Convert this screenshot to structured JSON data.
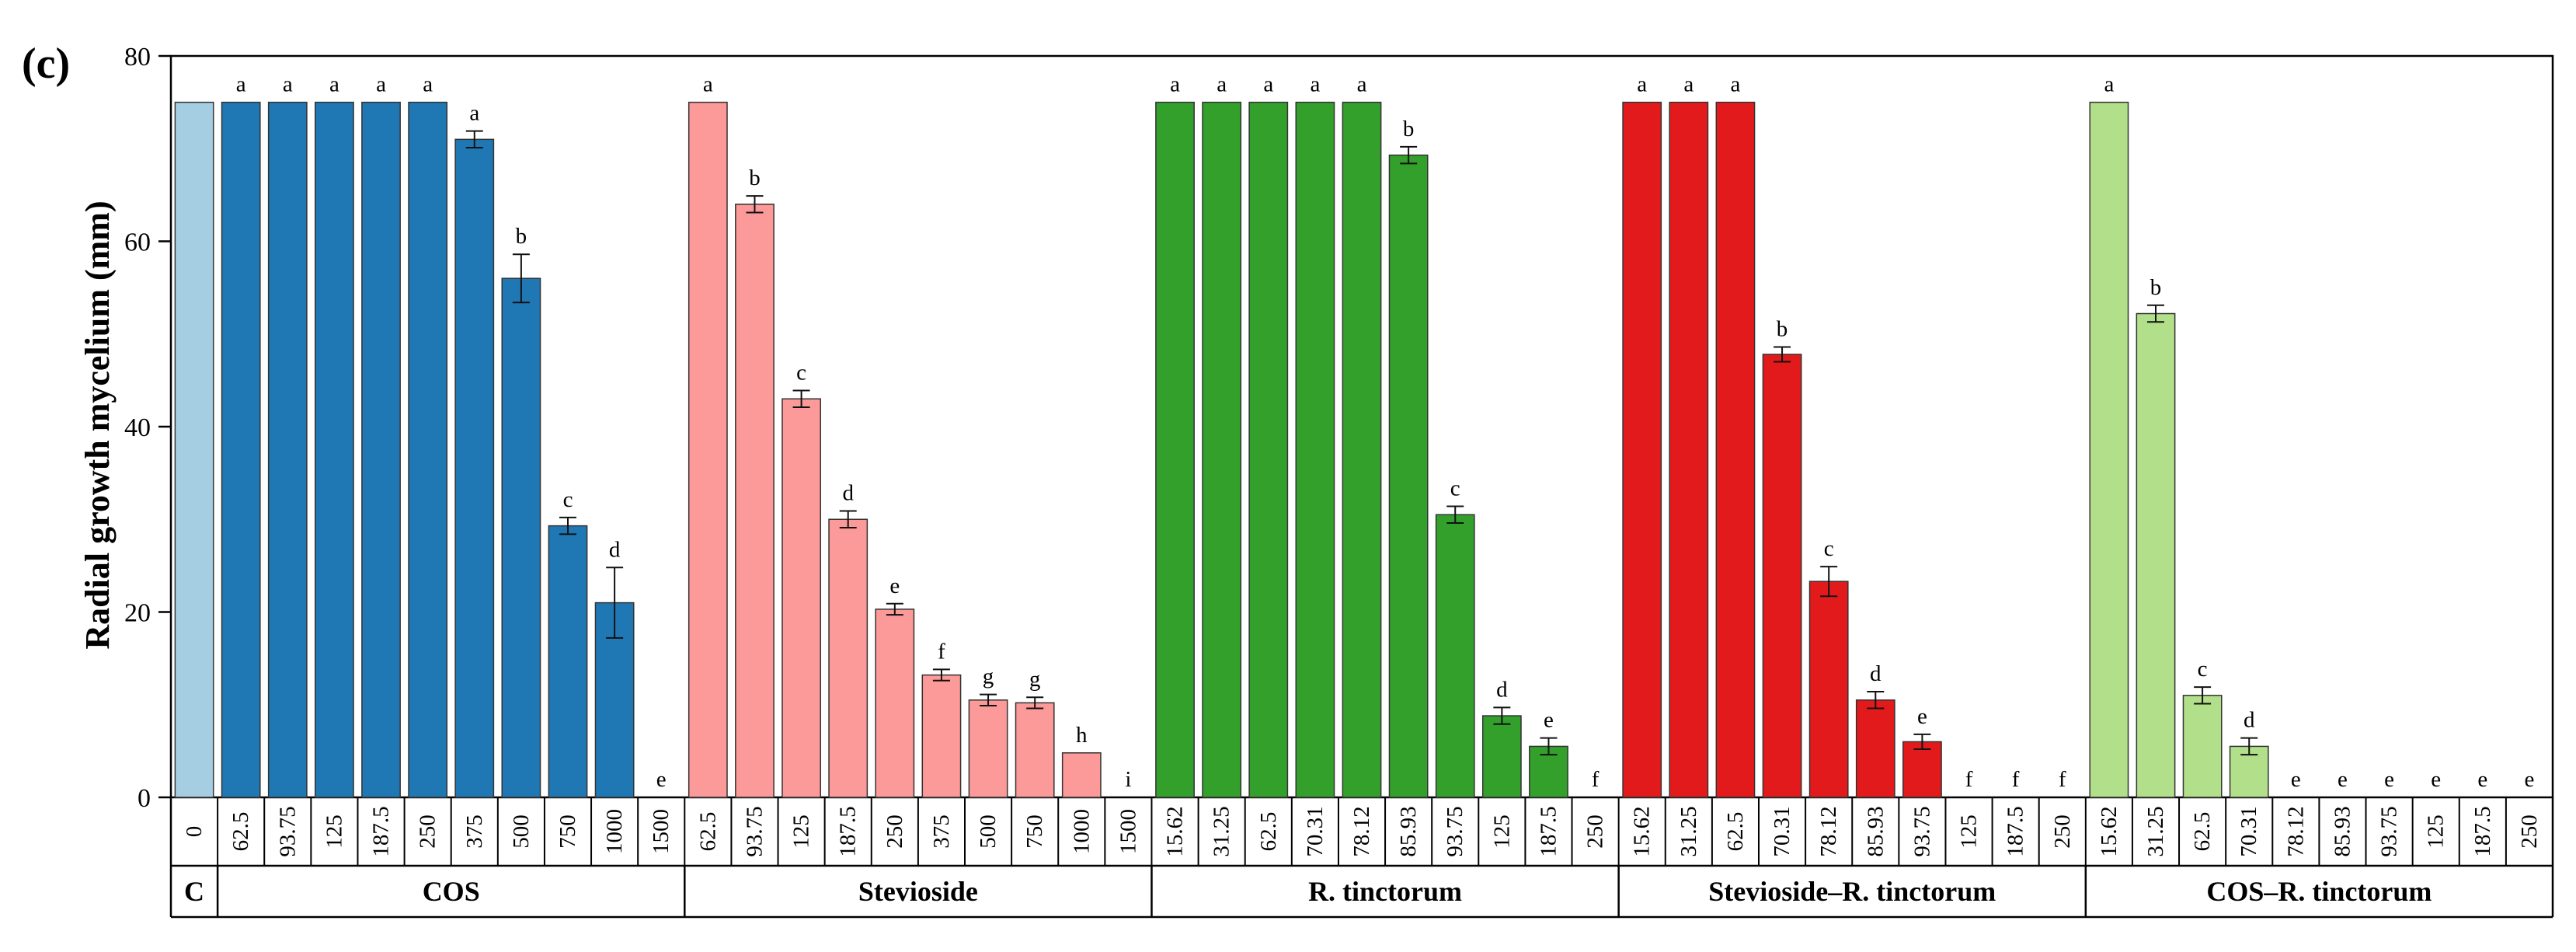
{
  "chart_data": {
    "type": "bar",
    "panel_label": "(c)",
    "ylabel": "Radial growth mycelium (mm)",
    "ylim": [
      0,
      80
    ],
    "yticks": [
      "0",
      "20",
      "40",
      "60",
      "80"
    ],
    "groups": [
      {
        "name": "C",
        "color": "#a6cee3",
        "concentrations": [
          "0"
        ],
        "values": [
          75
        ],
        "errors": [
          0
        ],
        "letters": [
          ""
        ]
      },
      {
        "name": "COS",
        "color": "#1f78b4",
        "concentrations": [
          "62.5",
          "93.75",
          "125",
          "187.5",
          "250",
          "375",
          "500",
          "750",
          "1000",
          "1500"
        ],
        "values": [
          75,
          75,
          75,
          75,
          75,
          71,
          56,
          29.3,
          21,
          0
        ],
        "errors": [
          0,
          0,
          0,
          0,
          0,
          0.9,
          2.6,
          0.9,
          3.8,
          0
        ],
        "letters": [
          "a",
          "a",
          "a",
          "a",
          "a",
          "a",
          "b",
          "c",
          "d",
          "e"
        ]
      },
      {
        "name": "Stevioside",
        "color": "#fb9a99",
        "concentrations": [
          "62.5",
          "93.75",
          "125",
          "187.5",
          "250",
          "375",
          "500",
          "750",
          "1000",
          "1500"
        ],
        "values": [
          75,
          64,
          43,
          30,
          20.3,
          13.2,
          10.5,
          10.2,
          4.8,
          0
        ],
        "errors": [
          0,
          0.9,
          0.9,
          0.9,
          0.6,
          0.6,
          0.6,
          0.6,
          0,
          0
        ],
        "letters": [
          "a",
          "b",
          "c",
          "d",
          "e",
          "f",
          "g",
          "g",
          "h",
          "i"
        ]
      },
      {
        "name": "R. tinctorum",
        "color": "#33a02c",
        "concentrations": [
          "15.62",
          "31.25",
          "62.5",
          "70.31",
          "78.12",
          "85.93",
          "93.75",
          "125",
          "187.5",
          "250"
        ],
        "values": [
          75,
          75,
          75,
          75,
          75,
          69.3,
          30.5,
          8.8,
          5.5,
          0
        ],
        "errors": [
          0,
          0,
          0,
          0,
          0,
          0.9,
          0.9,
          0.9,
          0.9,
          0
        ],
        "letters": [
          "a",
          "a",
          "a",
          "a",
          "a",
          "b",
          "c",
          "d",
          "e",
          "f"
        ]
      },
      {
        "name": "Stevioside–R. tinctorum",
        "color": "#e31a1c",
        "concentrations": [
          "15.62",
          "31.25",
          "62.5",
          "70.31",
          "78.12",
          "85.93",
          "93.75",
          "125",
          "187.5",
          "250"
        ],
        "values": [
          75,
          75,
          75,
          47.8,
          23.3,
          10.5,
          6,
          0,
          0,
          0
        ],
        "errors": [
          0,
          0,
          0,
          0.8,
          1.6,
          0.9,
          0.8,
          0,
          0,
          0
        ],
        "letters": [
          "a",
          "a",
          "a",
          "b",
          "c",
          "d",
          "e",
          "f",
          "f",
          "f"
        ]
      },
      {
        "name": "COS–R. tinctorum",
        "color": "#b2df8a",
        "concentrations": [
          "15.62",
          "31.25",
          "62.5",
          "70.31",
          "78.12",
          "85.93",
          "93.75",
          "125",
          "187.5",
          "250"
        ],
        "values": [
          75,
          52.2,
          11,
          5.5,
          0,
          0,
          0,
          0,
          0,
          0
        ],
        "errors": [
          0,
          0.9,
          0.9,
          0.9,
          0,
          0,
          0,
          0,
          0,
          0
        ],
        "letters": [
          "a",
          "b",
          "c",
          "d",
          "e",
          "e",
          "e",
          "e",
          "e",
          "e"
        ]
      }
    ],
    "grid": false,
    "legend": "none"
  }
}
